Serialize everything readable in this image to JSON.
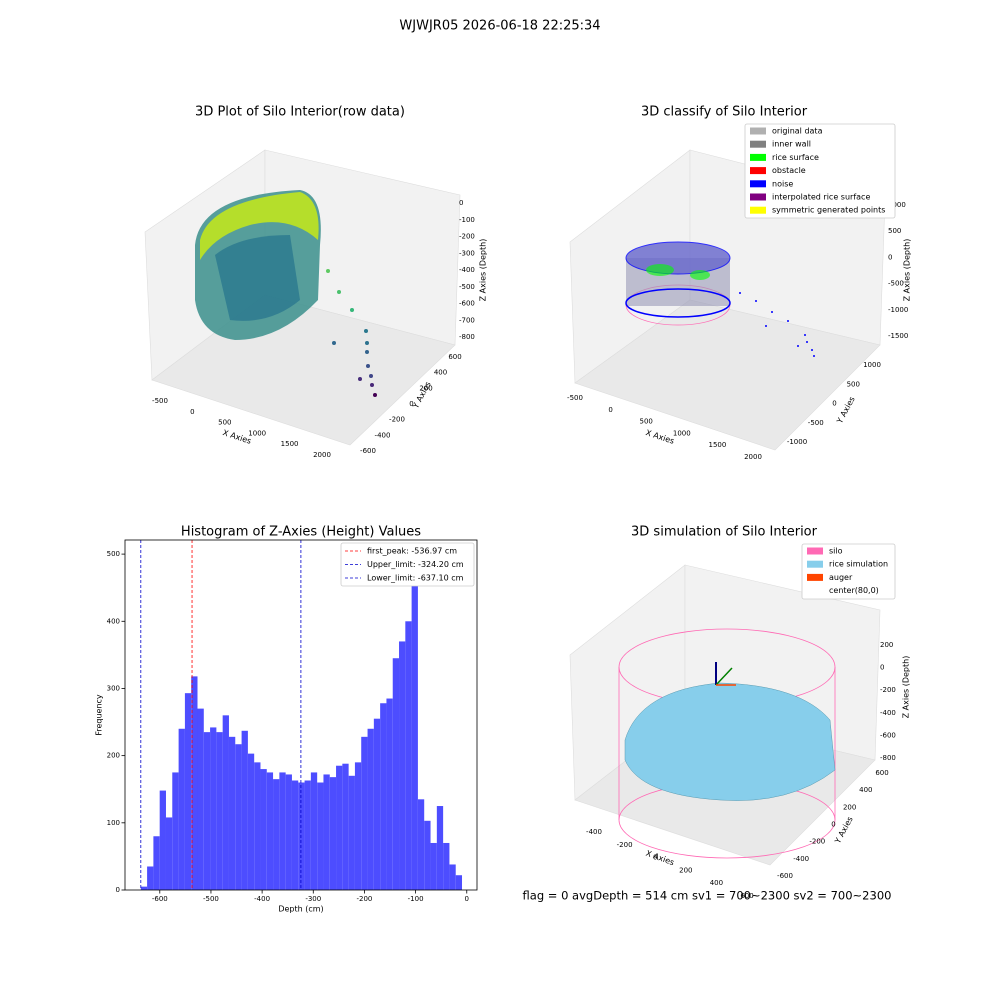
{
  "title": "WJWJR05 2026-06-18 22:25:34",
  "footer": "flag = 0     avgDepth = 514 cm  sv1 = 700~2300  sv2 = 700~2300",
  "chart_data": [
    {
      "type": "scatter3d",
      "title": "3D Plot of Silo Interior(row data)",
      "xlabel": "X Axies",
      "ylabel": "Y Axies",
      "zlabel": "Z Axies (Depth)",
      "xticks": [
        -500,
        0,
        500,
        1000,
        1500,
        2000
      ],
      "xlim": [
        -500,
        2000
      ],
      "yticks": [
        -600,
        -400,
        -200,
        0,
        200,
        400,
        600
      ],
      "ylim": [
        -600,
        600
      ],
      "zticks": [
        0,
        -100,
        -200,
        -300,
        -400,
        -500,
        -600,
        -700,
        -800
      ],
      "zlim": [
        0,
        -800
      ]
    },
    {
      "type": "scatter3d",
      "title": "3D classify of Silo Interior",
      "xlabel": "X Axies",
      "ylabel": "Y Axies",
      "zlabel": "Z Axies (Depth)",
      "xticks": [
        -500,
        0,
        500,
        1000,
        1500,
        2000
      ],
      "xlim": [
        -500,
        2000
      ],
      "yticks": [
        -1000,
        -500,
        0,
        500,
        1000
      ],
      "ylim": [
        -1000,
        1000
      ],
      "zticks": [
        1000,
        500,
        0,
        -500,
        -1000,
        -1500
      ],
      "zlim": [
        1000,
        -1500
      ],
      "legend": [
        {
          "name": "original data",
          "color": "#b0b0b0"
        },
        {
          "name": "inner wall",
          "color": "#808080"
        },
        {
          "name": "rice surface",
          "color": "#00ff00"
        },
        {
          "name": "obstacle",
          "color": "#ff0000"
        },
        {
          "name": "noise",
          "color": "#0000ff"
        },
        {
          "name": "interpolated rice surface",
          "color": "#800080"
        },
        {
          "name": "symmetric generated points",
          "color": "#ffff00"
        }
      ]
    },
    {
      "type": "histogram",
      "title": "Histogram of Z-Axies (Height) Values",
      "xlabel": "Depth (cm)",
      "ylabel": "Frequency",
      "color": "#4d4dff",
      "bins": [
        -637.1,
        -624.8,
        -612.5,
        -600.2,
        -587.9,
        -575.6,
        -563.2,
        -550.9,
        -538.6,
        -526.3,
        -514.0,
        -501.7,
        -489.4,
        -477.1,
        -464.8,
        -452.5,
        -440.1,
        -427.8,
        -415.5,
        -403.2,
        -390.9,
        -378.6,
        -366.3,
        -354.0,
        -341.7,
        -329.4,
        -317.0,
        -304.7,
        -292.4,
        -280.1,
        -267.8,
        -255.5,
        -243.2,
        -230.9,
        -218.6,
        -206.3,
        -193.9,
        -181.6,
        -169.3,
        -157.0,
        -144.7,
        -132.4,
        -120.1,
        -107.8,
        -95.5,
        -83.2,
        -70.8,
        -58.5,
        -46.2,
        -33.9,
        -21.6,
        -9.3
      ],
      "values": [
        5,
        35,
        80,
        148,
        108,
        175,
        240,
        293,
        318,
        270,
        235,
        242,
        235,
        260,
        228,
        217,
        237,
        203,
        190,
        180,
        175,
        165,
        175,
        172,
        163,
        160,
        163,
        175,
        160,
        172,
        168,
        185,
        188,
        170,
        190,
        228,
        240,
        255,
        278,
        285,
        345,
        370,
        400,
        478,
        135,
        103,
        70,
        125,
        70,
        38,
        22
      ],
      "xlim": [
        -668,
        20
      ],
      "xticks": [
        -600,
        -500,
        -400,
        -300,
        -200,
        -100,
        0
      ],
      "ylim": [
        0,
        521
      ],
      "yticks": [
        0,
        100,
        200,
        300,
        400,
        500
      ],
      "lines": [
        {
          "name": "first_peak: -536.97 cm",
          "value": -536.97,
          "color": "#ff0000"
        },
        {
          "name": "Upper_limit: -324.20 cm",
          "value": -324.2,
          "color": "#0000cc"
        },
        {
          "name": "Lower_limit: -637.10 cm",
          "value": -637.1,
          "color": "#0000cc"
        }
      ],
      "legend_position": "upper right"
    },
    {
      "type": "surface3d",
      "title": "3D simulation of Silo Interior",
      "xlabel": "X Axies",
      "ylabel": "Y Axies",
      "zlabel": "Z Axies (Depth)",
      "xticks": [
        -400,
        -200,
        0,
        200,
        400,
        600
      ],
      "xlim": [
        -400,
        600
      ],
      "yticks": [
        -600,
        -400,
        -200,
        0,
        200,
        400,
        600
      ],
      "ylim": [
        -600,
        600
      ],
      "zticks": [
        200,
        0,
        -200,
        -400,
        -600,
        -800
      ],
      "zlim": [
        200,
        -800
      ],
      "legend": [
        {
          "name": "silo",
          "color": "#ff69b4"
        },
        {
          "name": "rice simulation",
          "color": "#87ceeb"
        },
        {
          "name": "auger",
          "color": "#ff4500"
        },
        {
          "name": "center(80,0)",
          "color": "#ffffff"
        }
      ]
    }
  ]
}
